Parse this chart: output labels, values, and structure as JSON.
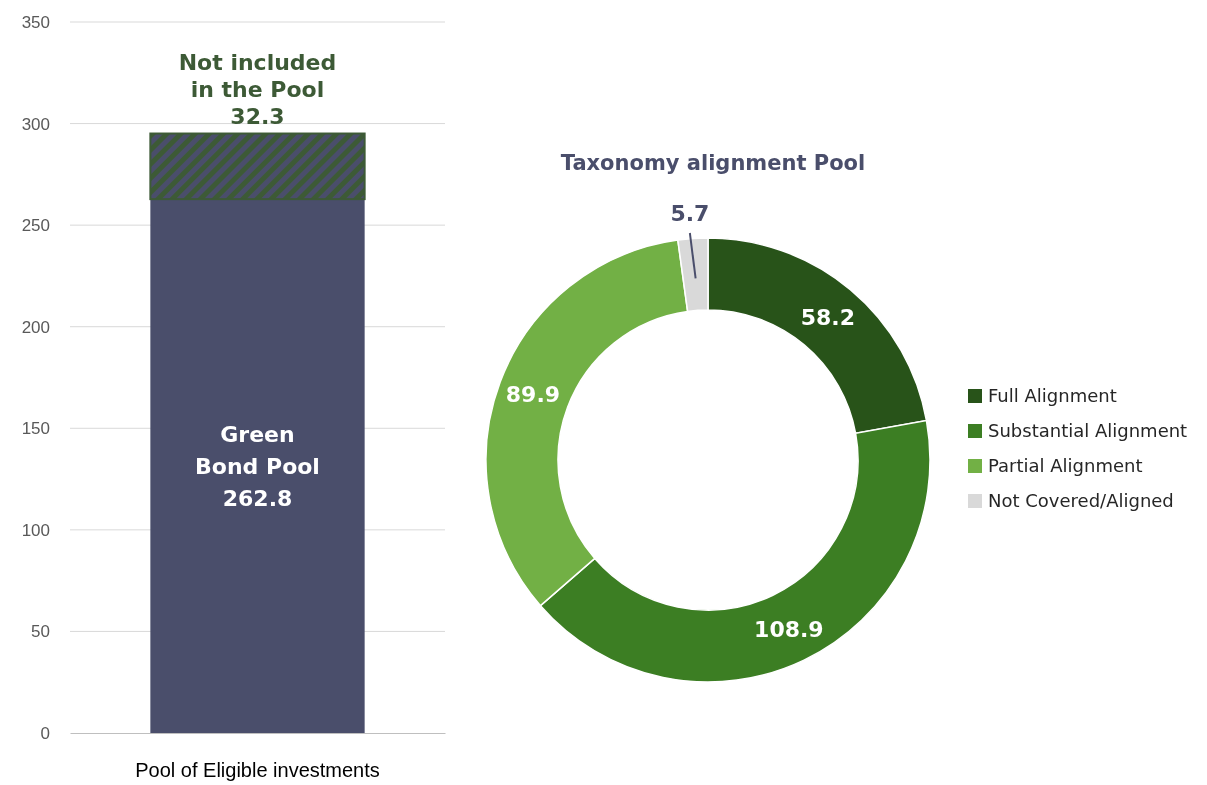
{
  "chart_data": [
    {
      "type": "bar",
      "stacked": true,
      "categories": [
        "Pool of Eligible investments"
      ],
      "series": [
        {
          "name": "Green Bond Pool",
          "color": "#4a4e6b",
          "values": [
            262.8
          ]
        },
        {
          "name": "Not included in the Pool",
          "color": "#3d5a36",
          "values": [
            32.3
          ]
        }
      ],
      "ylim": [
        0,
        350
      ],
      "yticks": [
        0,
        50,
        100,
        150,
        200,
        250,
        300,
        350
      ],
      "grid": "y",
      "data_labels": true
    },
    {
      "type": "donut",
      "title": "Taxonomy alignment Pool",
      "categories": [
        "Full Alignment",
        "Substantial Alignment",
        "Partial Alignment",
        "Not Covered/Aligned"
      ],
      "values": [
        58.2,
        108.9,
        89.9,
        5.7
      ],
      "colors": [
        "#285319",
        "#3c7e23",
        "#72b045",
        "#d9d9d9"
      ],
      "legend": "right",
      "data_labels": true
    }
  ]
}
